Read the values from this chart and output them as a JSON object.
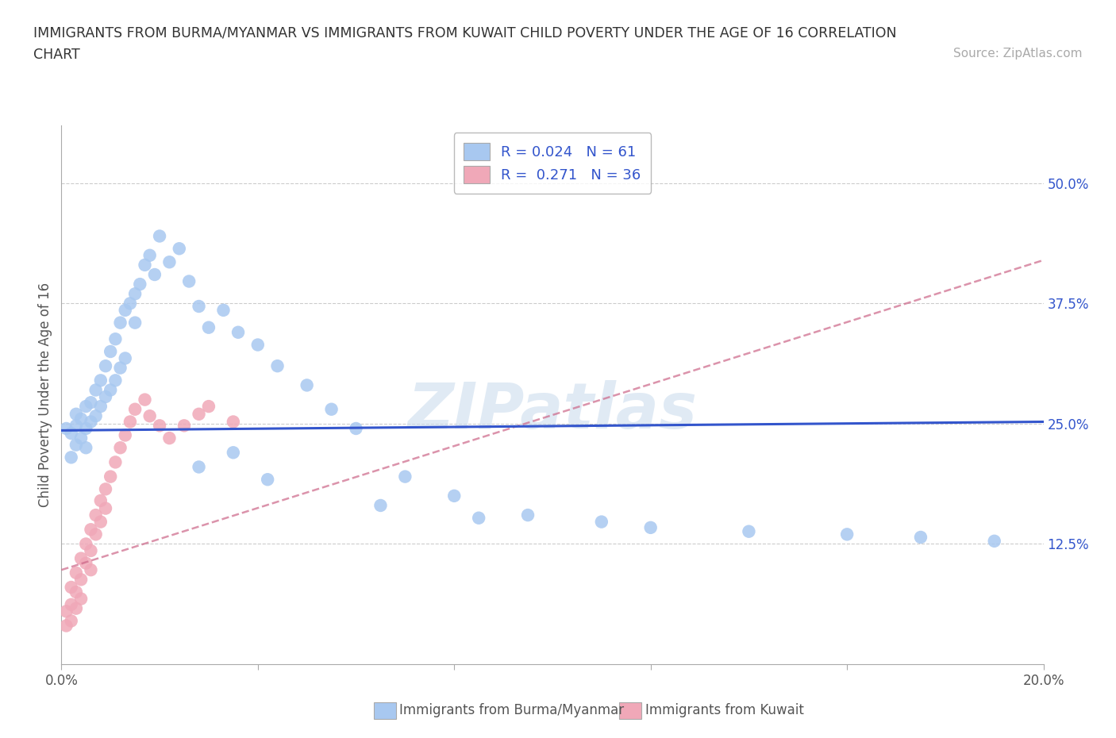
{
  "title_line1": "IMMIGRANTS FROM BURMA/MYANMAR VS IMMIGRANTS FROM KUWAIT CHILD POVERTY UNDER THE AGE OF 16 CORRELATION",
  "title_line2": "CHART",
  "source_text": "Source: ZipAtlas.com",
  "ylabel": "Child Poverty Under the Age of 16",
  "xlim": [
    0.0,
    0.2
  ],
  "ylim": [
    0.0,
    0.56
  ],
  "ytick_positions": [
    0.0,
    0.125,
    0.25,
    0.375,
    0.5
  ],
  "ytick_labels": [
    "",
    "12.5%",
    "25.0%",
    "37.5%",
    "50.0%"
  ],
  "legend_label1": "Immigrants from Burma/Myanmar",
  "legend_label2": "Immigrants from Kuwait",
  "r1": 0.024,
  "n1": 61,
  "r2": 0.271,
  "n2": 36,
  "color_burma": "#a8c8f0",
  "color_kuwait": "#f0a8b8",
  "color_blue": "#3355cc",
  "color_pink": "#cc6688",
  "color_stat": "#3355cc",
  "watermark": "ZIPatlas",
  "burma_trend_y0": 0.243,
  "burma_trend_y1": 0.252,
  "kuwait_trend_y0": 0.098,
  "kuwait_trend_y1": 0.42,
  "burma_x": [
    0.001,
    0.002,
    0.002,
    0.003,
    0.003,
    0.003,
    0.004,
    0.004,
    0.005,
    0.005,
    0.005,
    0.006,
    0.006,
    0.007,
    0.007,
    0.008,
    0.008,
    0.009,
    0.009,
    0.01,
    0.01,
    0.011,
    0.011,
    0.012,
    0.012,
    0.013,
    0.013,
    0.014,
    0.015,
    0.015,
    0.016,
    0.017,
    0.018,
    0.019,
    0.02,
    0.022,
    0.024,
    0.026,
    0.028,
    0.03,
    0.033,
    0.036,
    0.04,
    0.044,
    0.05,
    0.055,
    0.06,
    0.07,
    0.08,
    0.095,
    0.11,
    0.12,
    0.14,
    0.16,
    0.175,
    0.19,
    0.035,
    0.028,
    0.042,
    0.065,
    0.085
  ],
  "burma_y": [
    0.245,
    0.24,
    0.215,
    0.248,
    0.26,
    0.228,
    0.255,
    0.235,
    0.268,
    0.245,
    0.225,
    0.272,
    0.252,
    0.285,
    0.258,
    0.295,
    0.268,
    0.31,
    0.278,
    0.325,
    0.285,
    0.338,
    0.295,
    0.355,
    0.308,
    0.368,
    0.318,
    0.375,
    0.385,
    0.355,
    0.395,
    0.415,
    0.425,
    0.405,
    0.445,
    0.418,
    0.432,
    0.398,
    0.372,
    0.35,
    0.368,
    0.345,
    0.332,
    0.31,
    0.29,
    0.265,
    0.245,
    0.195,
    0.175,
    0.155,
    0.148,
    0.142,
    0.138,
    0.135,
    0.132,
    0.128,
    0.22,
    0.205,
    0.192,
    0.165,
    0.152
  ],
  "kuwait_x": [
    0.001,
    0.001,
    0.002,
    0.002,
    0.002,
    0.003,
    0.003,
    0.003,
    0.004,
    0.004,
    0.004,
    0.005,
    0.005,
    0.006,
    0.006,
    0.006,
    0.007,
    0.007,
    0.008,
    0.008,
    0.009,
    0.009,
    0.01,
    0.011,
    0.012,
    0.013,
    0.014,
    0.015,
    0.017,
    0.018,
    0.02,
    0.022,
    0.025,
    0.028,
    0.03,
    0.035
  ],
  "kuwait_y": [
    0.055,
    0.04,
    0.08,
    0.062,
    0.045,
    0.095,
    0.075,
    0.058,
    0.11,
    0.088,
    0.068,
    0.125,
    0.105,
    0.14,
    0.118,
    0.098,
    0.155,
    0.135,
    0.17,
    0.148,
    0.182,
    0.162,
    0.195,
    0.21,
    0.225,
    0.238,
    0.252,
    0.265,
    0.275,
    0.258,
    0.248,
    0.235,
    0.248,
    0.26,
    0.268,
    0.252
  ]
}
